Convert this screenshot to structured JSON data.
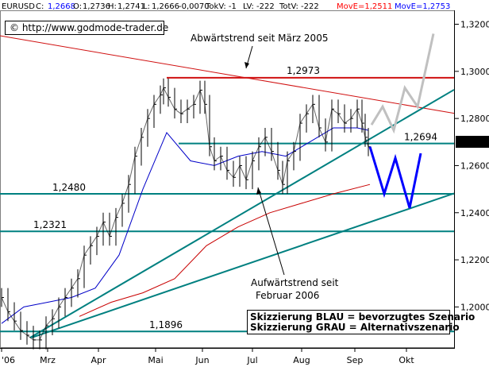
{
  "header": {
    "symbol": "EURUSD",
    "c_label": "C:",
    "c_value": "1,2668",
    "o_label": "O:",
    "o_value": "1,2736",
    "h_label": "H:",
    "h_value": "1,2741",
    "l_label": "L:",
    "l_value": "1,2666",
    "change": "-0,0070",
    "tokv": "TokV: -1",
    "lv": "LV: -222",
    "totv": "TotV: -222",
    "move1": "MovE=1,2511",
    "move2": "MovE=1,2753"
  },
  "copyright": "© http://www.godmode-trader.de",
  "last_price_label": "1,2668",
  "colors": {
    "price": "#000000",
    "ma_blue": "#0000c8",
    "ma_red": "#c80000",
    "trend_green": "#008080",
    "downtrend_red": "#d01010",
    "scenario_blue": "#0000ff",
    "scenario_grey": "#c0c0c0",
    "move1_text": "#ff0000",
    "move2_text": "#0000ff",
    "c_text": "#0000ff"
  },
  "chart_data": {
    "type": "line",
    "title": "",
    "xlabel": "",
    "ylabel": "",
    "ylim": [
      1.1826,
      1.3259
    ],
    "y_ticks": [
      1.2,
      1.22,
      1.24,
      1.26,
      1.28,
      1.3,
      1.32
    ],
    "y_tick_labels": [
      "1,2000",
      "1,2200",
      "1,2400",
      "1,2600",
      "1,2800",
      "1,3000",
      "1,3200"
    ],
    "x_ticks": [
      2,
      60,
      124,
      196,
      255,
      318,
      380,
      447,
      512
    ],
    "x_tick_labels": [
      "'06",
      "Mrz",
      "Apr",
      "Mai",
      "Jun",
      "Jul",
      "Aug",
      "Sep",
      "Okt"
    ],
    "grid": false,
    "price_series": {
      "name": "EURUSD",
      "x": [
        2,
        10,
        18,
        26,
        34,
        42,
        50,
        58,
        66,
        74,
        82,
        90,
        98,
        106,
        114,
        122,
        130,
        138,
        146,
        154,
        162,
        170,
        178,
        186,
        194,
        202,
        206,
        212,
        220,
        228,
        236,
        244,
        252,
        258,
        264,
        270,
        278,
        286,
        294,
        302,
        310,
        318,
        326,
        334,
        342,
        350,
        356,
        362,
        370,
        378,
        386,
        394,
        402,
        410,
        418,
        426,
        434,
        442,
        450,
        456,
        460,
        464
      ],
      "values": [
        1.204,
        1.198,
        1.194,
        1.19,
        1.188,
        1.186,
        1.186,
        1.192,
        1.195,
        1.2,
        1.204,
        1.208,
        1.212,
        1.222,
        1.226,
        1.23,
        1.236,
        1.23,
        1.238,
        1.244,
        1.252,
        1.264,
        1.272,
        1.28,
        1.286,
        1.29,
        1.293,
        1.289,
        1.284,
        1.282,
        1.284,
        1.286,
        1.292,
        1.286,
        1.268,
        1.262,
        1.264,
        1.258,
        1.255,
        1.26,
        1.254,
        1.262,
        1.268,
        1.272,
        1.266,
        1.258,
        1.252,
        1.262,
        1.266,
        1.278,
        1.282,
        1.286,
        1.276,
        1.27,
        1.284,
        1.282,
        1.278,
        1.28,
        1.284,
        1.278,
        1.272,
        1.268
      ]
    },
    "moving_averages": [
      {
        "label": "MovE=1,2753",
        "x": [
          2,
          30,
          60,
          90,
          120,
          150,
          180,
          210,
          240,
          270,
          300,
          330,
          360,
          390,
          420,
          450,
          464
        ],
        "values": [
          1.193,
          1.2,
          1.202,
          1.204,
          1.208,
          1.222,
          1.25,
          1.274,
          1.262,
          1.26,
          1.264,
          1.266,
          1.264,
          1.27,
          1.276,
          1.276,
          1.275
        ]
      },
      {
        "label": "MovE=1,2511",
        "x": [
          100,
          140,
          180,
          220,
          260,
          300,
          340,
          380,
          420,
          466
        ],
        "values": [
          1.196,
          1.202,
          1.206,
          1.212,
          1.226,
          1.234,
          1.24,
          1.244,
          1.248,
          1.252
        ]
      }
    ],
    "horizontal_levels": [
      {
        "label": "1,2973",
        "value": 1.2973,
        "x_start": 210,
        "x_end": 572
      },
      {
        "label": "1,2694",
        "value": 1.2694,
        "x_start": 225,
        "x_end": 572
      },
      {
        "label": "1,2480",
        "value": 1.248,
        "x_start": 0,
        "x_end": 572
      },
      {
        "label": "1,2321",
        "value": 1.2321,
        "x_start": 0,
        "x_end": 572
      },
      {
        "label": "1,1896",
        "value": 1.1896,
        "x_start": 0,
        "x_end": 572
      }
    ],
    "trendlines": [
      {
        "label": "Abwärtstrend seit März 2005",
        "x": [
          0,
          572
        ],
        "values": [
          1.3151,
          1.2822
        ]
      },
      {
        "label": "Aufwärtstrend seit Februar 2006",
        "x": [
          38,
          572
        ],
        "values": [
          1.187,
          1.2922
        ]
      },
      {
        "label": "",
        "x": [
          40,
          572
        ],
        "values": [
          1.187,
          1.2482
        ]
      }
    ],
    "scenarios": [
      {
        "label": "Skizzierung BLAU = bevorzugtes Szenario",
        "x": [
          466,
          484,
          498,
          516,
          530
        ],
        "values": [
          1.268,
          1.248,
          1.2632,
          1.242,
          1.2652
        ]
      },
      {
        "label": "Skizzierung GRAU = Alternativszenario",
        "x": [
          468,
          482,
          496,
          510,
          526,
          546
        ],
        "values": [
          1.2773,
          1.285,
          1.275,
          1.293,
          1.285,
          1.316
        ]
      }
    ],
    "annotations": [
      "Abwärtstrend seit März 2005",
      "Aufwärtstrend seit",
      "Februar 2006",
      "Skizzierung BLAU = bevorzugtes Szenario",
      "Skizzierung GRAU = Alternativszenario"
    ]
  }
}
